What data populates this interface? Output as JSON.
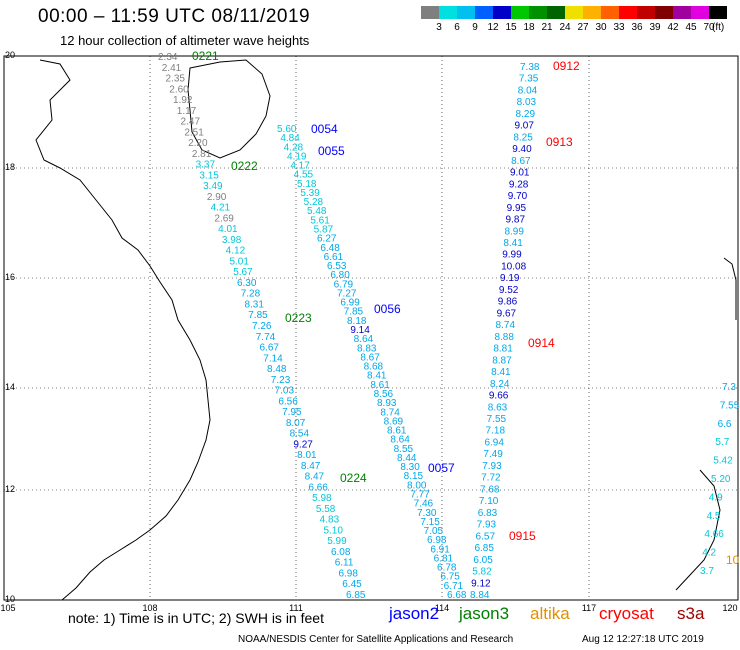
{
  "header": {
    "title": "00:00 – 11:59 UTC 08/11/2019",
    "subtitle": "12 hour collection of altimeter wave heights"
  },
  "colorbar": {
    "unit": "(ft)",
    "labels": [
      "3",
      "6",
      "9",
      "12",
      "15",
      "18",
      "21",
      "24",
      "27",
      "30",
      "33",
      "36",
      "39",
      "42",
      "45",
      "70"
    ],
    "colors": [
      "#7f7f7f",
      "#00e0e0",
      "#00c0f0",
      "#0060ff",
      "#0000c8",
      "#00c800",
      "#009000",
      "#006400",
      "#f0e000",
      "#ffb000",
      "#ff6000",
      "#ff0000",
      "#c00000",
      "#800000",
      "#a000a0",
      "#e000e0",
      "#000000"
    ]
  },
  "axes": {
    "lat_labels": [
      "20",
      "18",
      "16",
      "14",
      "12",
      "10"
    ],
    "lon_labels": [
      "105",
      "108",
      "111",
      "114",
      "117",
      "120"
    ]
  },
  "time_labels": [
    {
      "text": "0221",
      "color": "#008000"
    },
    {
      "text": "0222",
      "color": "#008000"
    },
    {
      "text": "0223",
      "color": "#008000"
    },
    {
      "text": "0224",
      "color": "#008000"
    },
    {
      "text": "0054",
      "color": "#0000ff"
    },
    {
      "text": "0055",
      "color": "#0000ff"
    },
    {
      "text": "0056",
      "color": "#0000ff"
    },
    {
      "text": "0057",
      "color": "#0000ff"
    },
    {
      "text": "0912",
      "color": "#ff0000"
    },
    {
      "text": "0913",
      "color": "#ff0000"
    },
    {
      "text": "0914",
      "color": "#ff0000"
    },
    {
      "text": "0915",
      "color": "#ff0000"
    },
    {
      "text": "10",
      "color": "#e09000"
    }
  ],
  "tracks": {
    "west_track": [
      "2.34",
      "2.41",
      "2.35",
      "2.60",
      "1.92",
      "1.17",
      "2.47",
      "2.51",
      "2.20",
      "2.81",
      "3.37",
      "3.15",
      "3.49",
      "2.90",
      "4.21",
      "2.69",
      "4.01",
      "3.98",
      "4.12",
      "5.01",
      "5.67",
      "6.30",
      "7.28",
      "8.31",
      "7.85",
      "7.26",
      "7.74",
      "6.67",
      "7.14",
      "8.48",
      "7.23",
      "7.03",
      "6.56",
      "7.95",
      "8.07",
      "8.54",
      "9.27",
      "8.01",
      "8.47",
      "8.47",
      "6.66",
      "5.98",
      "5.58",
      "4.83",
      "5.10",
      "5.99",
      "6.08",
      "6.11",
      "6.98",
      "6.45",
      "6.85"
    ],
    "middle_track": [
      "5.60",
      "4.84",
      "4.28",
      "4.19",
      "4.17",
      "4.55",
      "5.18",
      "5.39",
      "5.28",
      "5.48",
      "5.61",
      "5.87",
      "6.27",
      "6.48",
      "6.61",
      "6.53",
      "6.80",
      "6.79",
      "7.27",
      "6.99",
      "7.85",
      "8.18",
      "9.14",
      "8.64",
      "8.83",
      "8.67",
      "8.68",
      "8.41",
      "8.61",
      "8.56",
      "8.93",
      "8.74",
      "8.69",
      "8.61",
      "8.64",
      "8.55",
      "8.44",
      "8.30",
      "8.15",
      "8.00",
      "7.77",
      "7.46",
      "7.30",
      "7.15",
      "7.05",
      "6.98",
      "6.91",
      "6.81",
      "6.78",
      "6.75",
      "6.71",
      "6.68"
    ],
    "east_track": [
      "7.38",
      "7.35",
      "8.04",
      "8.03",
      "8.29",
      "9.07",
      "8.25",
      "9.40",
      "8.67",
      "9.01",
      "9.28",
      "9.70",
      "9.95",
      "9.87",
      "8.99",
      "8.41",
      "9.99",
      "10.08",
      "9.19",
      "9.52",
      "9.86",
      "9.67",
      "8.74",
      "8.88",
      "8.81",
      "8.87",
      "8.41",
      "8.24",
      "9.66",
      "8.63",
      "7.55",
      "7.18",
      "6.94",
      "7.49",
      "7.93",
      "7.72",
      "7.68",
      "7.10",
      "6.83",
      "7.93",
      "6.57",
      "6.85",
      "6.05",
      "5.82",
      "9.12",
      "8.84"
    ],
    "right_edge": [
      "7.3",
      "7.55",
      "6.6",
      "5.7",
      "5.42",
      "5.20",
      "4.9",
      "4.5",
      "4.66",
      "4.2",
      "3.7"
    ]
  },
  "legend_note": "note:  1) Time is in UTC;  2) SWH is in feet",
  "satellites": [
    {
      "name": "jason2",
      "color": "#0000ff"
    },
    {
      "name": "jason3",
      "color": "#008000"
    },
    {
      "name": "altika",
      "color": "#e09000"
    },
    {
      "name": "cryosat",
      "color": "#ff0000"
    },
    {
      "name": "s3a",
      "color": "#a00000"
    }
  ],
  "footer": {
    "center": "NOAA/NESDIS Center for Satellite Applications and Research",
    "timestamp": "Aug 12 12:27:18 UTC 2019"
  }
}
